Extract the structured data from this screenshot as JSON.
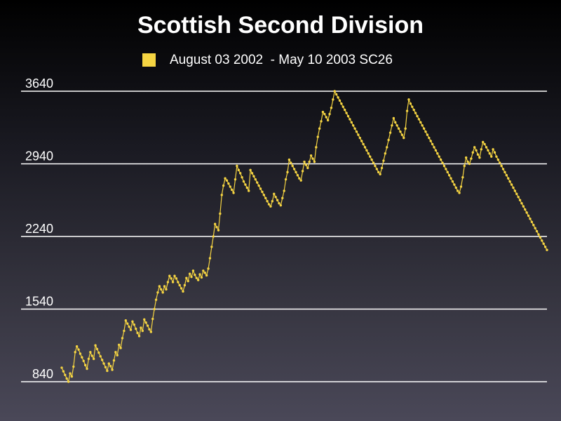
{
  "chart_data": {
    "type": "line",
    "title": "Scottish Second Division",
    "series": [
      {
        "name": "August 03 2002  - May 10 2003 SC26",
        "color": "#f5d442",
        "values": [
          975,
          940,
          905,
          870,
          840,
          920,
          890,
          985,
          1125,
          1180,
          1150,
          1110,
          1075,
          1040,
          1000,
          965,
          1060,
          1125,
          1090,
          1060,
          1190,
          1155,
          1120,
          1085,
          1050,
          1015,
          980,
          945,
          1015,
          990,
          955,
          1045,
          1125,
          1095,
          1195,
          1165,
          1260,
          1330,
          1430,
          1400,
          1370,
          1340,
          1420,
          1390,
          1350,
          1310,
          1280,
          1360,
          1330,
          1440,
          1410,
          1380,
          1345,
          1320,
          1445,
          1540,
          1630,
          1700,
          1760,
          1730,
          1700,
          1760,
          1730,
          1800,
          1860,
          1835,
          1800,
          1860,
          1835,
          1800,
          1770,
          1740,
          1710,
          1770,
          1840,
          1810,
          1880,
          1850,
          1910,
          1870,
          1840,
          1820,
          1875,
          1845,
          1910,
          1890,
          1865,
          1930,
          2030,
          2140,
          2240,
          2360,
          2330,
          2300,
          2460,
          2640,
          2730,
          2800,
          2780,
          2750,
          2720,
          2690,
          2660,
          2790,
          2920,
          2880,
          2850,
          2810,
          2770,
          2740,
          2710,
          2680,
          2880,
          2850,
          2820,
          2790,
          2760,
          2730,
          2700,
          2670,
          2640,
          2610,
          2580,
          2550,
          2530,
          2580,
          2650,
          2620,
          2590,
          2560,
          2540,
          2610,
          2680,
          2790,
          2860,
          2980,
          2950,
          2920,
          2890,
          2860,
          2830,
          2800,
          2780,
          2870,
          2960,
          2930,
          2900,
          2960,
          3020,
          2990,
          2960,
          3100,
          3200,
          3280,
          3350,
          3440,
          3420,
          3390,
          3360,
          3420,
          3480,
          3560,
          3640,
          3610,
          3580,
          3550,
          3520,
          3490,
          3460,
          3430,
          3400,
          3370,
          3340,
          3310,
          3280,
          3250,
          3220,
          3190,
          3160,
          3130,
          3100,
          3070,
          3040,
          3010,
          2980,
          2950,
          2920,
          2890,
          2860,
          2840,
          2900,
          2970,
          3040,
          3100,
          3170,
          3240,
          3310,
          3380,
          3340,
          3310,
          3280,
          3250,
          3220,
          3190,
          3280,
          3450,
          3560,
          3520,
          3490,
          3460,
          3430,
          3400,
          3370,
          3340,
          3310,
          3280,
          3250,
          3220,
          3190,
          3160,
          3130,
          3100,
          3070,
          3040,
          3010,
          2980,
          2950,
          2920,
          2890,
          2860,
          2830,
          2800,
          2770,
          2740,
          2710,
          2680,
          2660,
          2720,
          2810,
          2920,
          3000,
          2960,
          2940,
          2990,
          3050,
          3100,
          3070,
          3030,
          3000,
          3080,
          3150,
          3130,
          3100,
          3070,
          3040,
          3010,
          3080,
          3050,
          3010,
          2980,
          2950,
          2920,
          2890,
          2860,
          2830,
          2800,
          2770,
          2740,
          2710,
          2680,
          2650,
          2620,
          2590,
          2560,
          2530,
          2500,
          2470,
          2440,
          2410,
          2380,
          2350,
          2320,
          2290,
          2260,
          2230,
          2200,
          2170,
          2140,
          2110
        ]
      }
    ],
    "xlabel": "",
    "ylabel": "",
    "yticks": [
      840,
      1540,
      2240,
      2940,
      3640
    ],
    "ylim": [
      840,
      3640
    ],
    "grid": true,
    "legend_position": "top"
  }
}
